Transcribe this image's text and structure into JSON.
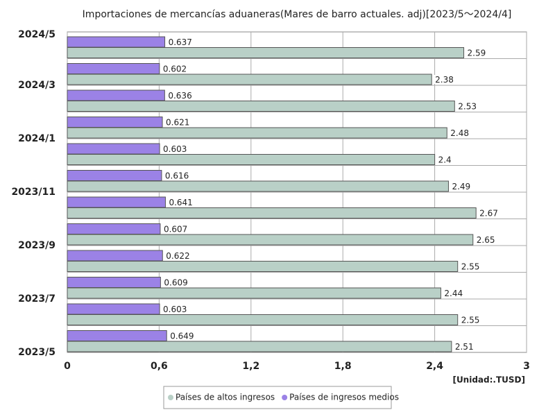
{
  "chart_data": {
    "type": "hbar",
    "title": "Importaciones de mercancías aduaneras(Mares de barro actuales. adj)[2023/5～2024/4]",
    "categories": [
      "2023/5",
      null,
      "2023/7",
      null,
      "2023/9",
      null,
      "2023/11",
      null,
      "2024/1",
      null,
      "2024/3",
      null
    ],
    "end_label": "2024/5",
    "series": [
      {
        "name": "Países de altos ingresos",
        "color": "#b9d0c7",
        "values": [
          2.51,
          2.55,
          2.44,
          2.55,
          2.65,
          2.67,
          2.49,
          2.4,
          2.48,
          2.53,
          2.38,
          2.59
        ]
      },
      {
        "name": "Países de ingresos medios",
        "color": "#9b82e6",
        "values": [
          0.649,
          0.603,
          0.609,
          0.622,
          0.607,
          0.641,
          0.616,
          0.603,
          0.621,
          0.636,
          0.602,
          0.637
        ]
      }
    ],
    "xlim": [
      0,
      3
    ],
    "xticks": [
      0,
      {
        "value": 0.6,
        "label": "0,6"
      },
      {
        "value": 1.2,
        "label": "1,2"
      },
      {
        "value": 1.8,
        "label": "1,8"
      },
      {
        "value": 2.4,
        "label": "2,4"
      },
      3
    ],
    "unit_label": "[Unidad:.TUSD]",
    "grid": true
  }
}
